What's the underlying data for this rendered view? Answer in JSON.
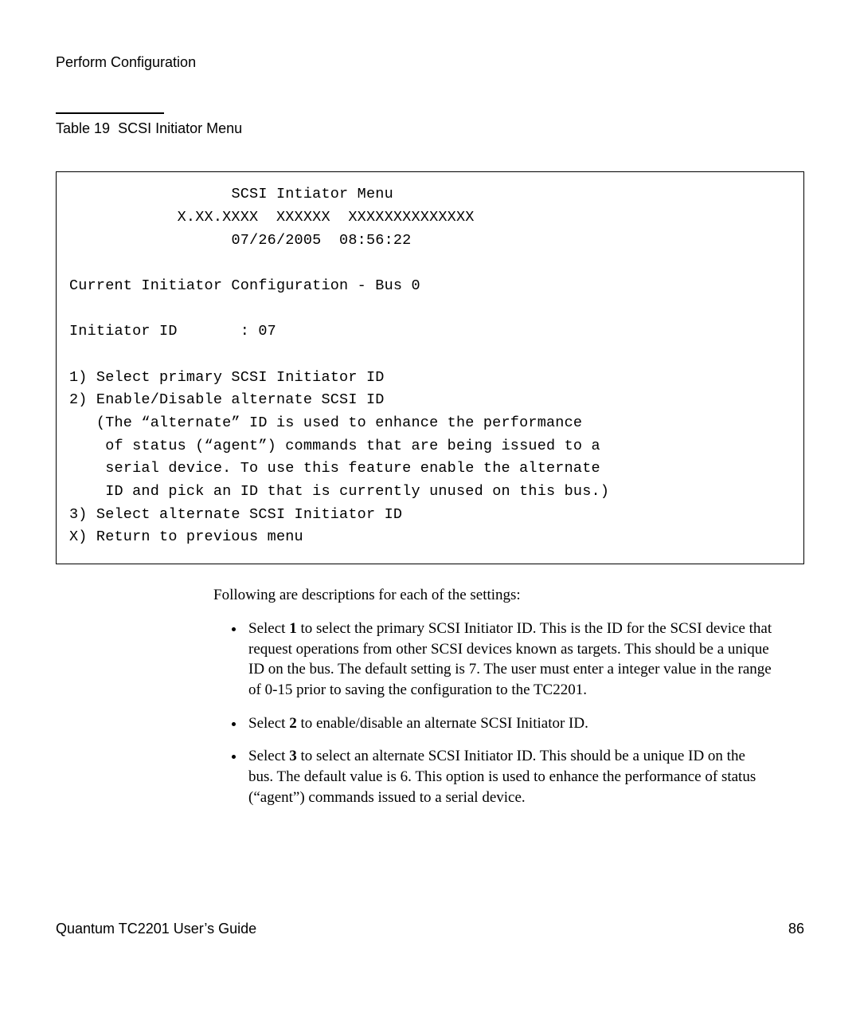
{
  "header": {
    "section": "Perform Configuration"
  },
  "caption": {
    "label": "Table 19",
    "title": "SCSI Initiator Menu"
  },
  "terminal": {
    "title": "SCSI Intiator Menu",
    "version": "X.XX.XXXX  XXXXXX  XXXXXXXXXXXXXX",
    "datetime": "07/26/2005  08:56:22",
    "config_header": "Current Initiator Configuration - Bus 0",
    "initiator_label": "Initiator ID",
    "initiator_value": "07",
    "menu1": "1) Select primary SCSI Initiator ID",
    "menu2": "2) Enable/Disable alternate SCSI ID",
    "note1": "(The “alternate” ID is used to enhance the performance",
    "note2": "of status (“agent”) commands that are being issued to a",
    "note3": "serial device. To use this feature enable the alternate",
    "note4": "ID and pick an ID that is currently unused on this bus.)",
    "menu3": "3) Select alternate SCSI Initiator ID",
    "menuX": "X) Return to previous menu"
  },
  "descriptions": {
    "intro": "Following are descriptions for each of the settings:",
    "items": {
      "i1_pre": "Select ",
      "i1_bold": "1",
      "i1_post": " to select the primary SCSI Initiator ID. This is the ID for the SCSI device that request operations from other SCSI devices known as targets. This should be a unique ID on the bus. The default setting is 7. The user must enter a integer value in the range of 0-15 prior to saving the configuration to the TC2201.",
      "i2_pre": "Select ",
      "i2_bold": "2",
      "i2_post": " to enable/disable an alternate SCSI Initiator ID.",
      "i3_pre": "Select ",
      "i3_bold": "3",
      "i3_post": " to select an alternate SCSI Initiator ID. This should be a unique ID on the bus. The default value is 6. This option is used to enhance the performance of status (“agent”) commands issued to a serial device."
    }
  },
  "footer": {
    "doc": "Quantum TC2201 User’s Guide",
    "page": "86"
  },
  "style": {
    "text_color": "#000000",
    "background_color": "#ffffff",
    "rule_color": "#000000",
    "box_border_color": "#000000",
    "mono_font": "Courier New",
    "serif_font": "Book Antiqua",
    "sans_font": "Arial",
    "body_fontsize_pt": 14,
    "terminal_fontsize_pt": 14,
    "desc_fontsize_pt": 14
  }
}
